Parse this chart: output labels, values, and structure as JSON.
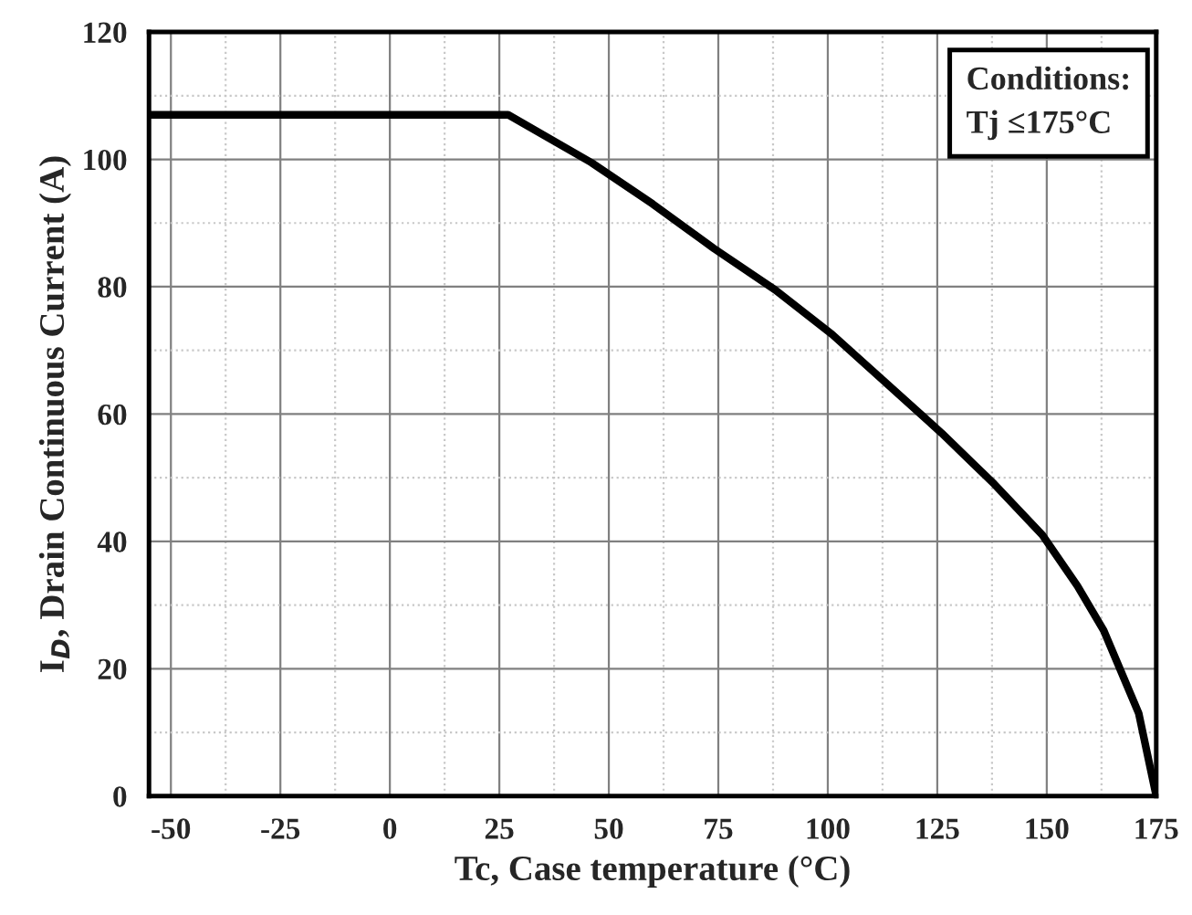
{
  "chart_data": {
    "type": "line",
    "xlabel": "Tc, Case temperature (°C)",
    "ylabel": "I$_{D}$, Drain Continuous Current (A)",
    "annotations": [
      "Conditions:",
      "Tj ≤175°C"
    ],
    "series": [
      {
        "color": "#000000",
        "x": [
          -55,
          27,
          46,
          60,
          74,
          88,
          101,
          126,
          138,
          149,
          157,
          163,
          171,
          175
        ],
        "values": [
          107,
          107,
          99.5,
          93,
          86,
          79.5,
          72.5,
          57,
          49,
          41,
          33,
          26,
          13,
          0
        ]
      }
    ],
    "xlim": [
      -55,
      175
    ],
    "xticks": [
      -50,
      -25,
      0,
      25,
      50,
      75,
      100,
      125,
      150,
      175
    ],
    "ylim": [
      0,
      120
    ],
    "yticks": [
      0,
      20,
      40,
      60,
      80,
      100,
      120
    ],
    "grid": true,
    "marker": "none",
    "line_style": "solid"
  }
}
